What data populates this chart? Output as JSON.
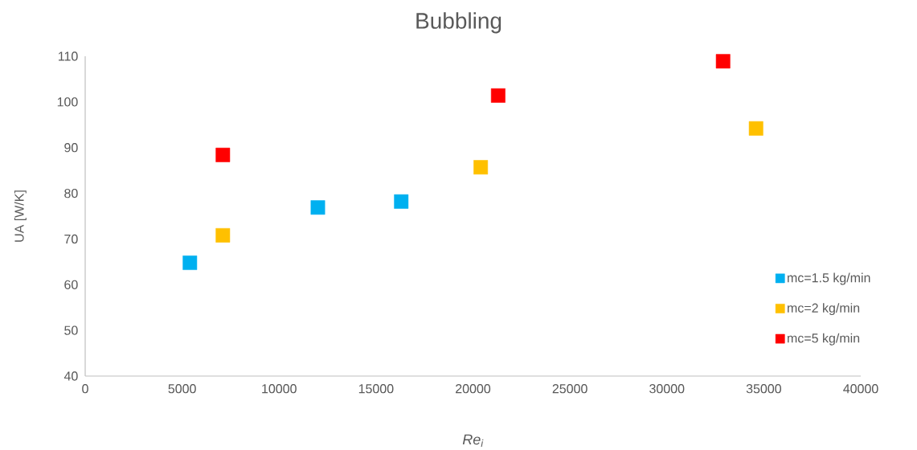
{
  "chart_data": {
    "type": "scatter",
    "title": "Bubbling",
    "xlabel": "Re$_{i}$",
    "ylabel": "UA [W/K]",
    "xlim": [
      0,
      40000
    ],
    "xticks": [
      0,
      5000,
      10000,
      15000,
      20000,
      25000,
      30000,
      35000,
      40000
    ],
    "ylim": [
      40,
      110
    ],
    "yticks": [
      40,
      50,
      60,
      70,
      80,
      90,
      100,
      110
    ],
    "marker": "square",
    "legend": "right",
    "grid": false,
    "series": [
      {
        "name": "mc=1.5 kg/min",
        "color": "#00b0f0",
        "x": [
          5400,
          12000,
          16300
        ],
        "values": [
          64.8,
          76.9,
          78.2
        ]
      },
      {
        "name": "mc=2 kg/min",
        "color": "#ffc000",
        "x": [
          7100,
          20400,
          34600
        ],
        "values": [
          70.8,
          85.7,
          94.2
        ]
      },
      {
        "name": "mc=5 kg/min",
        "color": "#ff0000",
        "x": [
          7100,
          21300,
          32900
        ],
        "values": [
          88.4,
          101.4,
          108.9
        ]
      }
    ]
  }
}
